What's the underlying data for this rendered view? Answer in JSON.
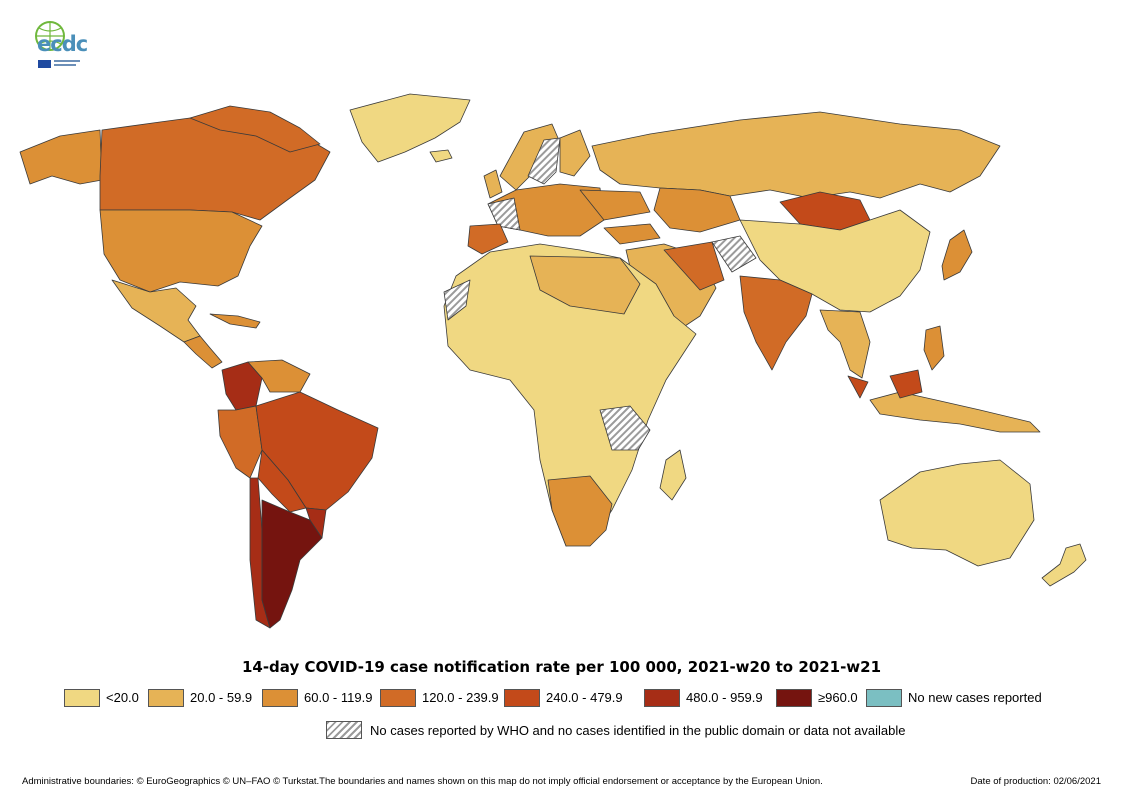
{
  "logo": {
    "text": "ecdc"
  },
  "title": "14-day COVID-19 case notification rate per 100 000, 2021-w20 to 2021-w21",
  "legend": [
    {
      "label": "<20.0",
      "color": "#f0d882"
    },
    {
      "label": "20.0 - 59.9",
      "color": "#e6b356"
    },
    {
      "label": "60.0 - 119.9",
      "color": "#dc9036"
    },
    {
      "label": "120.0 - 239.9",
      "color": "#d16b26"
    },
    {
      "label": "240.0 - 479.9",
      "color": "#c34a1a"
    },
    {
      "label": "480.0 - 959.9",
      "color": "#a62d16"
    },
    {
      "label": "≥960.0",
      "color": "#75140f"
    },
    {
      "label": "No new cases reported",
      "color": "#7bbfc2"
    }
  ],
  "no_data_label": "No cases reported by WHO and no cases identified in the public domain or data not available",
  "footer": {
    "left": "Administrative boundaries: © EuroGeographics © UN–FAO © Turkstat.The boundaries and names shown on this map do not imply official endorsement or acceptance by the European Union.",
    "right": "Date of production: 02/06/2021"
  }
}
